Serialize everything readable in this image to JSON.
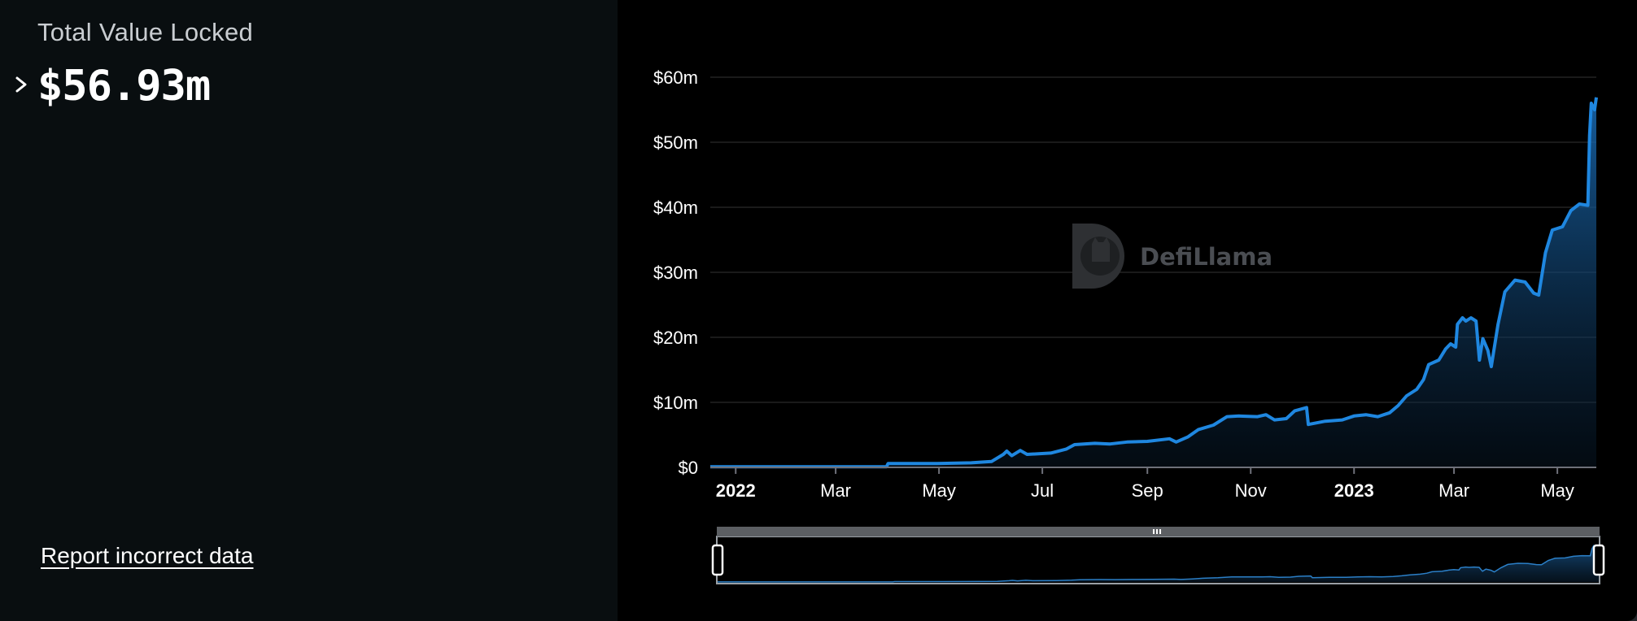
{
  "summary": {
    "label": "Total Value Locked",
    "value": "$56.93m"
  },
  "report_link": "Report incorrect data",
  "watermark": "DefiLlama",
  "colors": {
    "line": "#1f87e0",
    "area_top": "#125994",
    "background": "#000000",
    "grid": "#222222"
  },
  "chart_data": {
    "type": "area",
    "title": "Total Value Locked",
    "xlabel": "",
    "ylabel": "",
    "ylim": [
      0,
      60
    ],
    "y_unit": "$m",
    "y_ticks": [
      "$0",
      "$10m",
      "$20m",
      "$30m",
      "$40m",
      "$50m",
      "$60m"
    ],
    "x_ticks": [
      {
        "label": "2022",
        "date": "2022-01-01",
        "bold": true
      },
      {
        "label": "Mar",
        "date": "2022-03-01",
        "bold": false
      },
      {
        "label": "May",
        "date": "2022-05-01",
        "bold": false
      },
      {
        "label": "Jul",
        "date": "2022-07-01",
        "bold": false
      },
      {
        "label": "Sep",
        "date": "2022-09-01",
        "bold": false
      },
      {
        "label": "Nov",
        "date": "2022-11-01",
        "bold": false
      },
      {
        "label": "2023",
        "date": "2023-01-01",
        "bold": true
      },
      {
        "label": "Mar",
        "date": "2023-03-01",
        "bold": false
      },
      {
        "label": "May",
        "date": "2023-05-01",
        "bold": false
      }
    ],
    "x_range": [
      "2021-12-17",
      "2023-05-24"
    ],
    "grid": true,
    "legend": "none",
    "series": [
      {
        "points": [
          [
            "2021-12-17",
            0.1
          ],
          [
            "2022-01-20",
            0.1
          ],
          [
            "2022-02-25",
            0.1
          ],
          [
            "2022-03-31",
            0.1
          ],
          [
            "2022-04-01",
            0.6
          ],
          [
            "2022-04-30",
            0.6
          ],
          [
            "2022-05-20",
            0.7
          ],
          [
            "2022-06-01",
            0.9
          ],
          [
            "2022-06-08",
            2.0
          ],
          [
            "2022-06-10",
            2.5
          ],
          [
            "2022-06-13",
            1.8
          ],
          [
            "2022-06-18",
            2.6
          ],
          [
            "2022-06-22",
            2.0
          ],
          [
            "2022-07-06",
            2.2
          ],
          [
            "2022-07-15",
            2.8
          ],
          [
            "2022-07-20",
            3.5
          ],
          [
            "2022-08-01",
            3.7
          ],
          [
            "2022-08-10",
            3.6
          ],
          [
            "2022-08-20",
            3.9
          ],
          [
            "2022-09-01",
            4.0
          ],
          [
            "2022-09-14",
            4.4
          ],
          [
            "2022-09-18",
            3.9
          ],
          [
            "2022-09-25",
            4.7
          ],
          [
            "2022-10-01",
            5.8
          ],
          [
            "2022-10-10",
            6.5
          ],
          [
            "2022-10-18",
            7.8
          ],
          [
            "2022-10-25",
            7.9
          ],
          [
            "2022-11-05",
            7.8
          ],
          [
            "2022-11-10",
            8.1
          ],
          [
            "2022-11-15",
            7.3
          ],
          [
            "2022-11-22",
            7.5
          ],
          [
            "2022-11-27",
            8.7
          ],
          [
            "2022-12-04",
            9.2
          ],
          [
            "2022-12-05",
            6.6
          ],
          [
            "2022-12-15",
            7.1
          ],
          [
            "2022-12-25",
            7.3
          ],
          [
            "2023-01-01",
            7.9
          ],
          [
            "2023-01-08",
            8.1
          ],
          [
            "2023-01-15",
            7.8
          ],
          [
            "2023-01-22",
            8.4
          ],
          [
            "2023-01-27",
            9.5
          ],
          [
            "2023-02-01",
            11.0
          ],
          [
            "2023-02-07",
            12.0
          ],
          [
            "2023-02-11",
            13.5
          ],
          [
            "2023-02-14",
            15.8
          ],
          [
            "2023-02-20",
            16.5
          ],
          [
            "2023-02-24",
            18.2
          ],
          [
            "2023-02-27",
            19.0
          ],
          [
            "2023-03-02",
            18.5
          ],
          [
            "2023-03-03",
            22.0
          ],
          [
            "2023-03-06",
            23.0
          ],
          [
            "2023-03-08",
            22.5
          ],
          [
            "2023-03-11",
            23.0
          ],
          [
            "2023-03-14",
            22.5
          ],
          [
            "2023-03-16",
            16.5
          ],
          [
            "2023-03-18",
            19.8
          ],
          [
            "2023-03-21",
            18.0
          ],
          [
            "2023-03-23",
            15.5
          ],
          [
            "2023-03-27",
            22.0
          ],
          [
            "2023-03-31",
            27.0
          ],
          [
            "2023-04-06",
            28.8
          ],
          [
            "2023-04-12",
            28.5
          ],
          [
            "2023-04-17",
            26.8
          ],
          [
            "2023-04-20",
            26.5
          ],
          [
            "2023-04-24",
            33.0
          ],
          [
            "2023-04-28",
            36.5
          ],
          [
            "2023-05-04",
            37.0
          ],
          [
            "2023-05-09",
            39.5
          ],
          [
            "2023-05-14",
            40.5
          ],
          [
            "2023-05-19",
            40.3
          ],
          [
            "2023-05-20",
            51.0
          ],
          [
            "2023-05-21",
            56.0
          ],
          [
            "2023-05-22",
            55.5
          ],
          [
            "2023-05-23",
            55.0
          ],
          [
            "2023-05-24",
            56.9
          ]
        ]
      }
    ]
  }
}
